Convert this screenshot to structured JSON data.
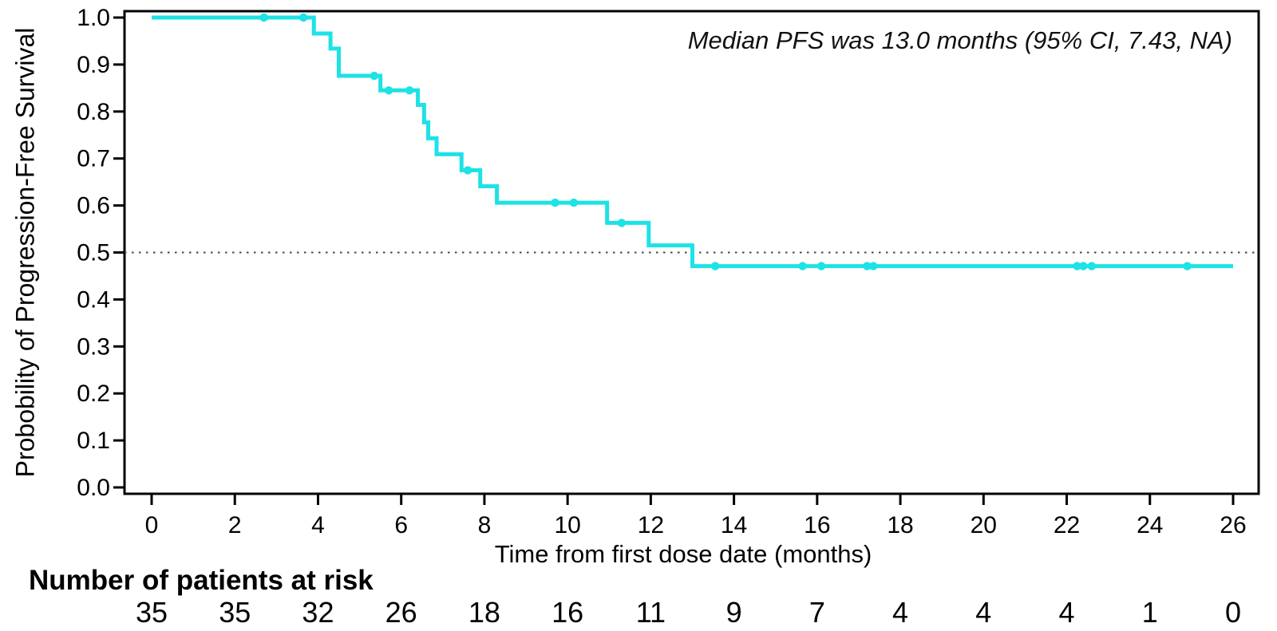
{
  "chart_data": {
    "type": "line",
    "subtype": "kaplan-meier-step",
    "title": "",
    "annotation": "Median PFS was 13.0 months (95% CI, 7.43, NA)",
    "xlabel": "Time from first dose date (months)",
    "ylabel": "Probobility of Progression-Free Survival",
    "xticks": [
      0,
      2,
      4,
      6,
      8,
      10,
      12,
      14,
      16,
      18,
      20,
      22,
      24,
      26
    ],
    "ytick_labels": [
      "0.0",
      "0.1",
      "0.2",
      "0.3",
      "0.4",
      "0.5",
      "0.6",
      "0.7",
      "0.8",
      "0.9",
      "1.0"
    ],
    "xlim": [
      -0.65,
      26.62
    ],
    "ylim": [
      -0.014,
      1.028
    ],
    "grid": false,
    "legend_position": "none",
    "reference_line_y": 0.5,
    "colors": {
      "curve": "#1de2e6",
      "axis": "#000000",
      "reference_dotted": "#444444"
    },
    "series": [
      {
        "name": "Progression-Free Survival",
        "start": [
          0,
          1.0
        ],
        "end_time": 26.0,
        "steps": [
          [
            3.9,
            0.966
          ],
          [
            4.3,
            0.934
          ],
          [
            4.5,
            0.876
          ],
          [
            5.5,
            0.845
          ],
          [
            6.4,
            0.814
          ],
          [
            6.55,
            0.777
          ],
          [
            6.65,
            0.743
          ],
          [
            6.85,
            0.709
          ],
          [
            7.45,
            0.675
          ],
          [
            7.9,
            0.641
          ],
          [
            8.3,
            0.606
          ],
          [
            10.95,
            0.563
          ],
          [
            11.95,
            0.515
          ],
          [
            13.0,
            0.471
          ]
        ],
        "censors": [
          [
            2.7,
            1.0
          ],
          [
            3.65,
            1.0
          ],
          [
            5.35,
            0.876
          ],
          [
            5.7,
            0.845
          ],
          [
            6.2,
            0.845
          ],
          [
            7.6,
            0.675
          ],
          [
            9.7,
            0.606
          ],
          [
            10.15,
            0.606
          ],
          [
            11.3,
            0.563
          ],
          [
            13.55,
            0.471
          ],
          [
            15.65,
            0.471
          ],
          [
            16.1,
            0.471
          ],
          [
            17.2,
            0.471
          ],
          [
            17.35,
            0.471
          ],
          [
            22.25,
            0.471
          ],
          [
            22.4,
            0.471
          ],
          [
            22.6,
            0.471
          ],
          [
            24.9,
            0.471
          ]
        ]
      }
    ],
    "risk_table": {
      "header": "Number of patients at risk",
      "times": [
        0,
        2,
        4,
        6,
        8,
        10,
        12,
        14,
        16,
        18,
        20,
        22,
        24,
        26
      ],
      "counts": [
        35,
        35,
        32,
        26,
        18,
        16,
        11,
        9,
        7,
        4,
        4,
        4,
        1,
        0
      ]
    }
  }
}
